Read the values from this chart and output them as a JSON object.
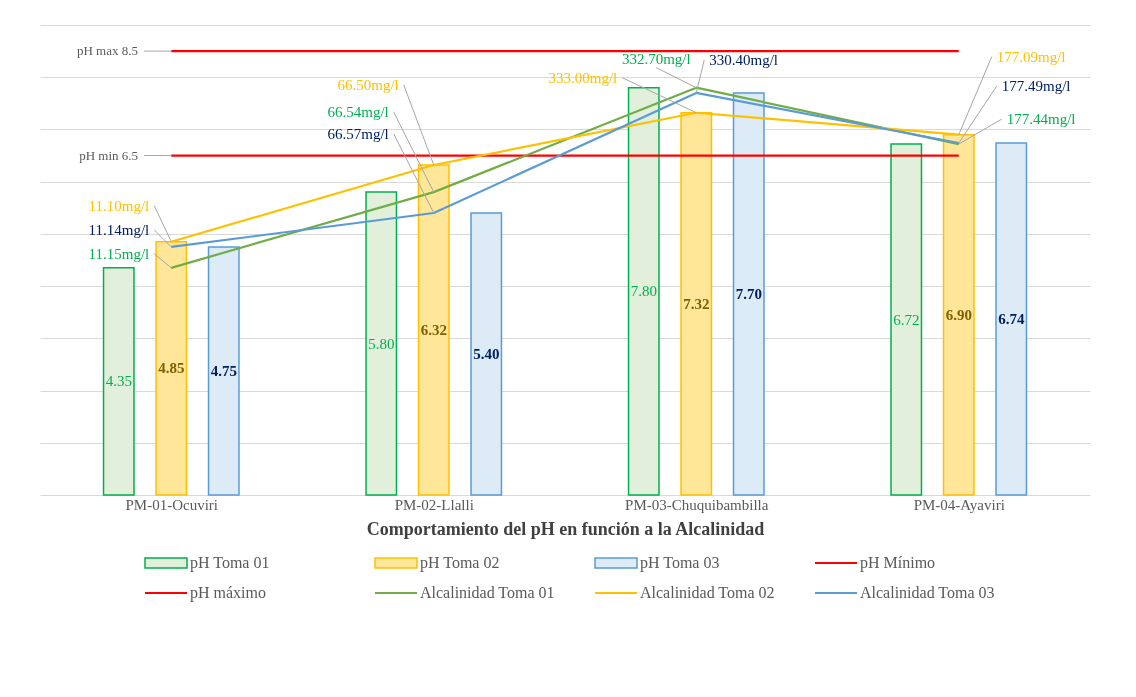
{
  "chart_data": {
    "type": "bar",
    "xlabel": "Comportamiento del pH en función a la Alcalinidad",
    "categories": [
      "PM-01-Ocuviri",
      "PM-02-Llalli",
      "PM-03-Chuquibambilla",
      "PM-04-Ayaviri"
    ],
    "series": [
      {
        "name": "pH Toma 01",
        "color": "#e2efda",
        "values": [
          4.35,
          5.8,
          7.8,
          6.72
        ],
        "value_labels": [
          "4.35",
          "5.80",
          "7.80",
          "6.72"
        ]
      },
      {
        "name": "pH Toma 02",
        "color": "#ffe699",
        "values": [
          4.85,
          6.32,
          7.32,
          6.9
        ],
        "value_labels": [
          "4.85",
          "6.32",
          "7.32",
          "6.90"
        ]
      },
      {
        "name": "pH Toma 03",
        "color": "#ddebf7",
        "values": [
          4.75,
          5.4,
          7.7,
          6.74
        ],
        "value_labels": [
          "4.75",
          "5.40",
          "7.70",
          "6.74"
        ]
      },
      {
        "name": "pH Mínimo",
        "type": "line",
        "color": "#ff0000",
        "values": [
          6.5,
          6.5,
          6.5,
          6.5
        ]
      },
      {
        "name": "pH máximo",
        "type": "line",
        "color": "#ff0000",
        "values": [
          8.5,
          8.5,
          8.5,
          8.5
        ]
      },
      {
        "name": "Alcalinidad Toma 01",
        "type": "line",
        "color": "#70ad47",
        "values": [
          4.35,
          5.8,
          7.8,
          6.72
        ]
      },
      {
        "name": "Alcalinidad Toma 02",
        "type": "line",
        "color": "#ffc000",
        "values": [
          4.85,
          6.32,
          7.32,
          6.9
        ]
      },
      {
        "name": "Alcalinidad Toma 03",
        "type": "line",
        "color": "#5b9bd5",
        "values": [
          4.75,
          5.4,
          7.7,
          6.74
        ]
      }
    ],
    "annotations": [
      {
        "text": "pH max 8.5",
        "x": "PM-01-Ocuviri",
        "y": 8.5
      },
      {
        "text": "pH min  6.5",
        "x": "PM-01-Ocuviri",
        "y": 6.5
      },
      {
        "text": "11.15mg/l",
        "x": "PM-01-Ocuviri",
        "y": 4.35
      },
      {
        "text": "66.54mg/l",
        "x": "PM-02-Llalli",
        "y": 5.8
      },
      {
        "text": "332.70mg/l",
        "x": "PM-03-Chuquibambilla",
        "y": 7.8
      },
      {
        "text": "177.44mg/l",
        "x": "PM-04-Ayaviri",
        "y": 6.72
      },
      {
        "text": "11.10mg/l",
        "x": "PM-01-Ocuviri",
        "y": 4.85
      },
      {
        "text": "66.50mg/l",
        "x": "PM-02-Llalli",
        "y": 6.32
      },
      {
        "text": "333.00mg/l",
        "x": "PM-03-Chuquibambilla",
        "y": 7.32
      },
      {
        "text": "177.09mg/l",
        "x": "PM-04-Ayaviri",
        "y": 6.9
      },
      {
        "text": "11.14mg/l",
        "x": "PM-01-Ocuviri",
        "y": 4.75
      },
      {
        "text": "66.57mg/l",
        "x": "PM-02-Llalli",
        "y": 5.4
      },
      {
        "text": "330.40mg/l",
        "x": "PM-03-Chuquibambilla",
        "y": 7.7
      },
      {
        "text": "177.49mg/l",
        "x": "PM-04-Ayaviri",
        "y": 6.74
      }
    ],
    "ylim": [
      0,
      9
    ],
    "yticks": [
      {
        "value": 0,
        "label": null
      },
      {
        "value": 1,
        "label": null
      },
      {
        "value": 2,
        "label": null
      },
      {
        "value": 3,
        "label": null
      },
      {
        "value": 4,
        "label": null
      },
      {
        "value": 5,
        "label": null
      },
      {
        "value": 6,
        "label": null
      },
      {
        "value": 7,
        "label": null
      },
      {
        "value": 8,
        "label": null
      },
      {
        "value": 9,
        "label": null
      }
    ],
    "tick_labels": "x",
    "grid": "y",
    "legend": "bottom",
    "line_style": "solid",
    "marker": "none"
  }
}
